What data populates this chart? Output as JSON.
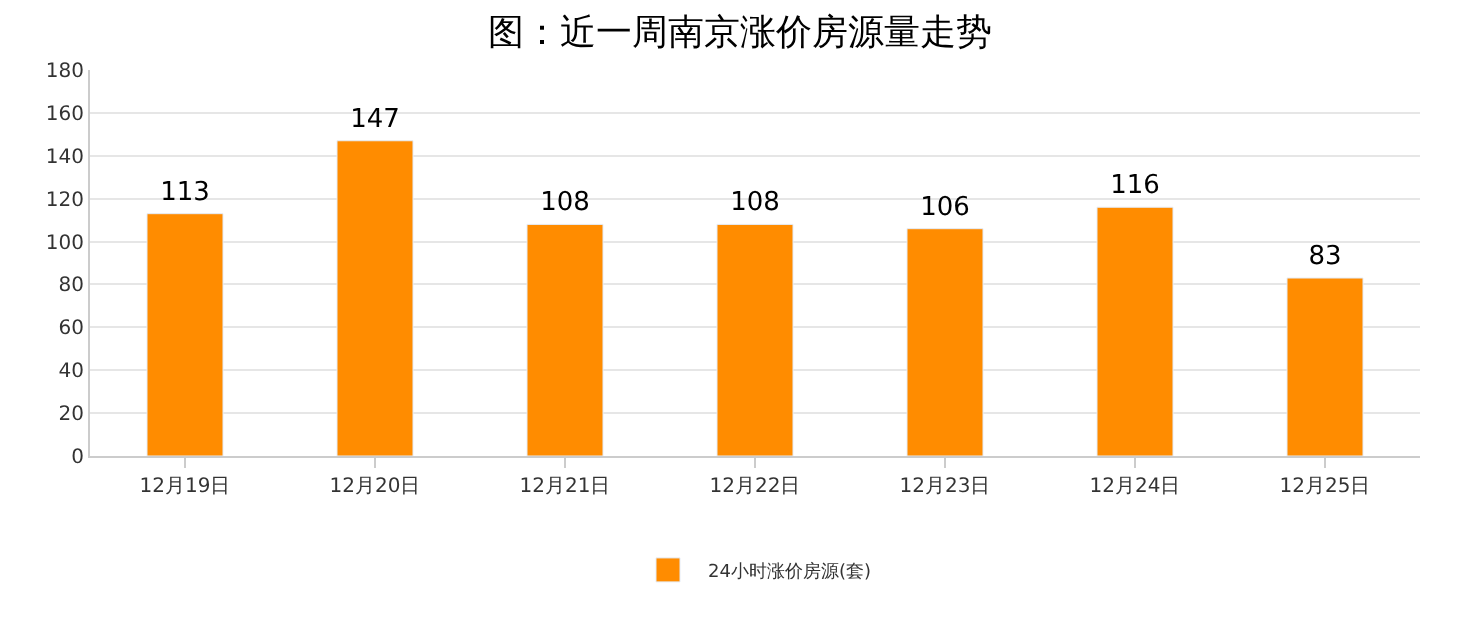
{
  "chart_data": {
    "type": "bar",
    "title": "图：近一周南京涨价房源量走势",
    "categories": [
      "12月19日",
      "12月20日",
      "12月21日",
      "12月22日",
      "12月23日",
      "12月24日",
      "12月25日"
    ],
    "series": [
      {
        "name": "24小时涨价房源(套)",
        "color": "#ff8c00",
        "values": [
          113,
          147,
          108,
          108,
          106,
          116,
          83
        ]
      }
    ],
    "ylim": [
      0,
      180
    ],
    "yticks": [
      0,
      20,
      40,
      60,
      80,
      100,
      120,
      140,
      160,
      180
    ],
    "grid": "y",
    "legend": "bottom",
    "data_labels": true
  }
}
